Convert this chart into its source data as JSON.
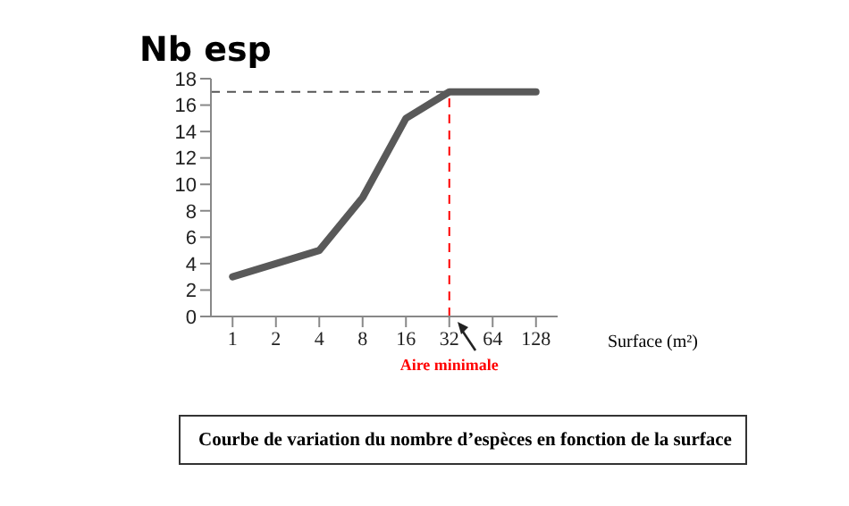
{
  "chart_data": {
    "type": "line",
    "ylabel": "Nb esp",
    "xlabel": "Surface (m²)",
    "categories": [
      "1",
      "2",
      "4",
      "8",
      "16",
      "32",
      "64",
      "128"
    ],
    "series": [
      {
        "color": "#595959",
        "values": [
          3,
          4,
          5,
          9,
          15,
          17,
          17,
          17
        ]
      }
    ],
    "ylim": [
      0,
      18
    ],
    "yticks": [
      0,
      2,
      4,
      6,
      8,
      10,
      12,
      14,
      16,
      18
    ],
    "grid": false,
    "legend": false,
    "marker": "none",
    "line_style": "solid",
    "ref_lines": [
      {
        "axis": "y",
        "value": 17,
        "color": "#555555",
        "line_style": "dashed"
      },
      {
        "axis": "x",
        "value": "32",
        "color": "#ff0000",
        "line_style": "dashed",
        "label": "Aire minimale"
      }
    ],
    "annotations": [
      "Courbe de variation du nombre d’espèces en fonction de la surface"
    ]
  }
}
